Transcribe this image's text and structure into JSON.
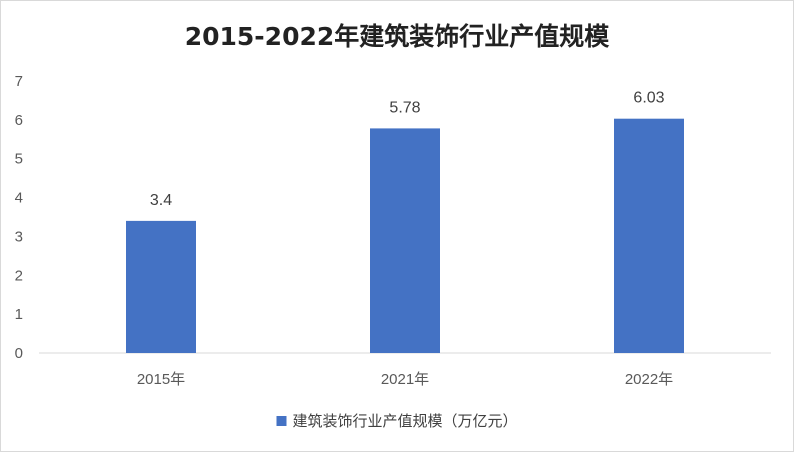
{
  "chart_data": {
    "type": "bar",
    "title": "2015-2022年建筑装饰行业产值规模",
    "categories": [
      "2015年",
      "2021年",
      "2022年"
    ],
    "series": [
      {
        "name": "建筑装饰行业产值规模（万亿元）",
        "values": [
          3.4,
          5.78,
          6.03
        ]
      }
    ],
    "data_labels": [
      "3.4",
      "5.78",
      "6.03"
    ],
    "y_ticks": [
      "0",
      "1",
      "2",
      "3",
      "4",
      "5",
      "6",
      "7"
    ],
    "ylim": [
      0,
      7
    ],
    "grid": false,
    "legend_position": "bottom",
    "colors": {
      "bar": "#4472C4",
      "axis": "#d9d9d9"
    }
  }
}
